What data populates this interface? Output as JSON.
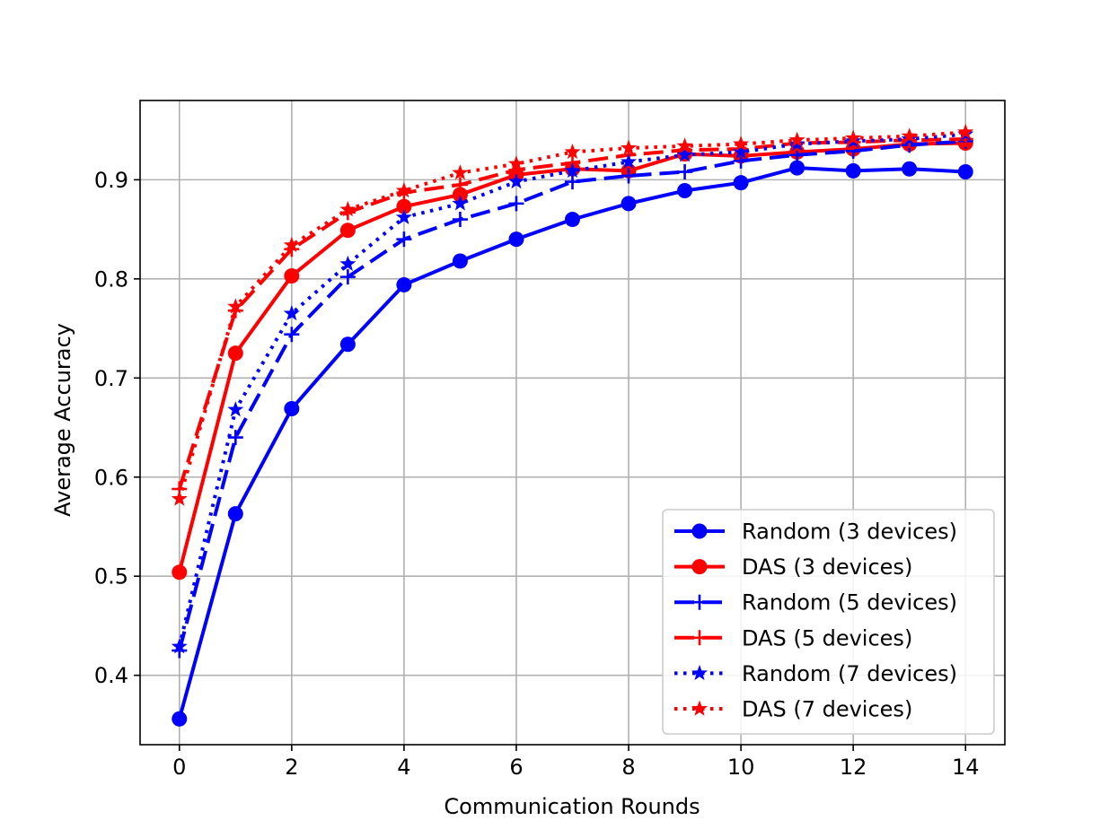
{
  "chart_data": {
    "type": "line",
    "xlabel": "Communication Rounds",
    "ylabel": "Average Accuracy",
    "xlim": [
      -0.7,
      14.7
    ],
    "ylim": [
      0.33,
      0.98
    ],
    "x_ticks": [
      0,
      2,
      4,
      6,
      8,
      10,
      12,
      14
    ],
    "y_ticks": [
      0.4,
      0.5,
      0.6,
      0.7,
      0.8,
      0.9
    ],
    "grid": true,
    "legend_position": "lower-right",
    "x": [
      0,
      1,
      2,
      3,
      4,
      5,
      6,
      7,
      8,
      9,
      10,
      11,
      12,
      13,
      14
    ],
    "series": [
      {
        "name": "Random (3 devices)",
        "color": "#0000ff",
        "line_style": "solid",
        "marker": "circle",
        "values": [
          0.356,
          0.563,
          0.669,
          0.734,
          0.794,
          0.818,
          0.84,
          0.86,
          0.876,
          0.889,
          0.897,
          0.912,
          0.909,
          0.911,
          0.908
        ]
      },
      {
        "name": "DAS (3 devices)",
        "color": "#ff0000",
        "line_style": "solid",
        "marker": "circle",
        "values": [
          0.504,
          0.725,
          0.803,
          0.849,
          0.873,
          0.885,
          0.905,
          0.911,
          0.909,
          0.926,
          0.924,
          0.928,
          0.931,
          0.936,
          0.937
        ]
      },
      {
        "name": "Random (5 devices)",
        "color": "#0000ff",
        "line_style": "dashed",
        "marker": "plus",
        "values": [
          0.425,
          0.64,
          0.744,
          0.802,
          0.84,
          0.86,
          0.876,
          0.898,
          0.904,
          0.908,
          0.919,
          0.925,
          0.929,
          0.935,
          0.939
        ]
      },
      {
        "name": "DAS (5 devices)",
        "color": "#ff0000",
        "line_style": "dashed",
        "marker": "plus",
        "values": [
          0.588,
          0.768,
          0.83,
          0.867,
          0.887,
          0.895,
          0.91,
          0.917,
          0.925,
          0.93,
          0.931,
          0.937,
          0.938,
          0.94,
          0.941
        ]
      },
      {
        "name": "Random (7 devices)",
        "color": "#0000ff",
        "line_style": "dotted",
        "marker": "star",
        "values": [
          0.429,
          0.668,
          0.765,
          0.815,
          0.862,
          0.876,
          0.898,
          0.909,
          0.918,
          0.925,
          0.928,
          0.936,
          0.939,
          0.941,
          0.946
        ]
      },
      {
        "name": "DAS (7 devices)",
        "color": "#ff0000",
        "line_style": "dotted",
        "marker": "star",
        "values": [
          0.578,
          0.772,
          0.834,
          0.87,
          0.889,
          0.907,
          0.916,
          0.928,
          0.932,
          0.934,
          0.936,
          0.94,
          0.942,
          0.944,
          0.948
        ]
      }
    ]
  }
}
